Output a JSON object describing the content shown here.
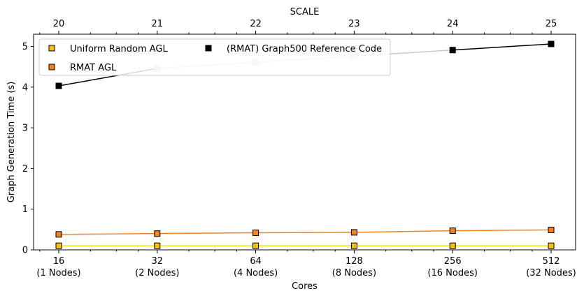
{
  "chart_data": {
    "type": "line",
    "x_cores": [
      16,
      32,
      64,
      128,
      256,
      512
    ],
    "xtick_labels": [
      [
        "16",
        "(1 Nodes)"
      ],
      [
        "32",
        "(2 Nodes)"
      ],
      [
        "64",
        "(4 Nodes)"
      ],
      [
        "128",
        "(8 Nodes)"
      ],
      [
        "256",
        "(16 Nodes)"
      ],
      [
        "512",
        "(32 Nodes)"
      ]
    ],
    "top_tick_labels": [
      "20",
      "21",
      "22",
      "23",
      "24",
      "25"
    ],
    "xlabel": "Cores",
    "top_xlabel": "SCALE",
    "ylabel": "Graph Generation Time (s)",
    "ylim": [
      0,
      5.3
    ],
    "yticks": [
      0,
      1,
      2,
      3,
      4,
      5
    ],
    "xscale": "log2",
    "grid": false,
    "legend_placement": "top-left",
    "series": [
      {
        "name": "Uniform Random AGL",
        "values": [
          0.1,
          0.1,
          0.1,
          0.1,
          0.1,
          0.1
        ],
        "line_color": "#f5e312",
        "marker_color": "#ffc107",
        "segment_colors": [
          "#f5e312",
          "#f5e312",
          "#f5e312",
          "#f5e312",
          "#f5e312"
        ],
        "marker_colors": [
          "#ffc107",
          "#ffc107",
          "#ffc107",
          "#ffc107",
          "#ffc107",
          "#ffc107"
        ]
      },
      {
        "name": "RMAT AGL",
        "values": [
          0.38,
          0.4,
          0.42,
          0.43,
          0.47,
          0.49
        ],
        "line_color": "#f5821f",
        "marker_color": "#f5821f",
        "segment_colors": [
          "#f5821f",
          "#f5821f",
          "#f5821f",
          "#f5821f",
          "#f5821f"
        ],
        "marker_colors": [
          "#f5821f",
          "#f5821f",
          "#f5821f",
          "#f5821f",
          "#f5821f",
          "#f5821f"
        ]
      },
      {
        "name": "(RMAT) Graph500 Reference Code",
        "values": [
          4.03,
          4.46,
          4.61,
          4.76,
          4.91,
          5.06
        ],
        "line_color": "#000000",
        "marker_color": "#000000",
        "segment_colors": [
          "#000000",
          "#c8c8c8",
          "#c8c8c8",
          "#c8c8c8",
          "#000000"
        ],
        "marker_colors": [
          "#000000",
          "#c8c8c8",
          "#c8c8c8",
          "#c8c8c8",
          "#000000",
          "#000000"
        ]
      }
    ]
  }
}
